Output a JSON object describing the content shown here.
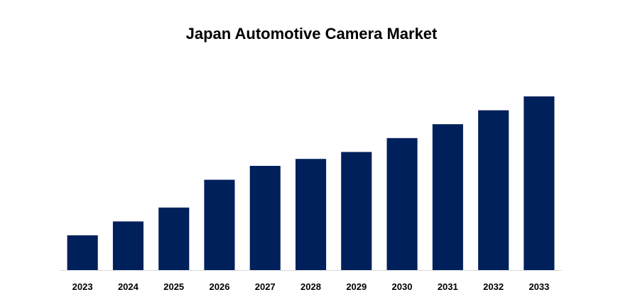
{
  "chart_data": {
    "type": "bar",
    "title": "Japan Automotive Camera Market",
    "categories": [
      "2023",
      "2024",
      "2025",
      "2026",
      "2027",
      "2028",
      "2029",
      "2030",
      "2031",
      "2032",
      "2033"
    ],
    "values": [
      20,
      28,
      36,
      52,
      60,
      64,
      68,
      76,
      84,
      92,
      100
    ],
    "xlabel": "",
    "ylabel": "",
    "ylim": [
      0,
      100
    ],
    "y_axis_visible": false,
    "grid": false,
    "legend": "none",
    "colors": {
      "bar": "#00205b",
      "axis_line": "#d9d9d9",
      "text": "#000000"
    }
  }
}
